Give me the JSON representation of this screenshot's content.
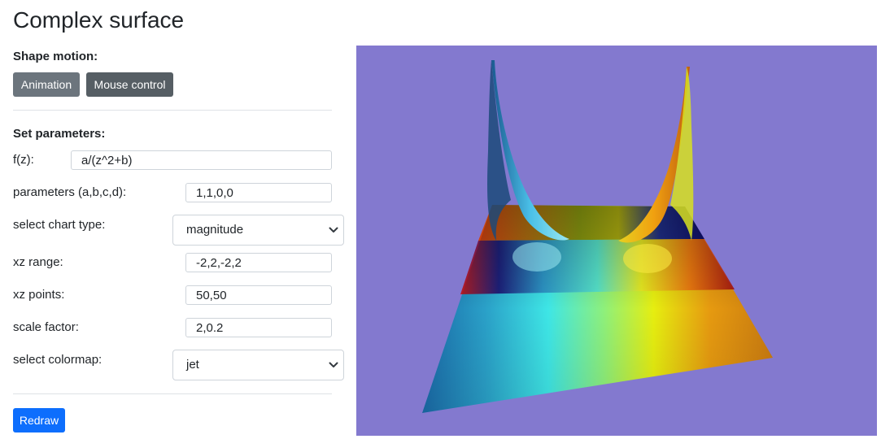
{
  "page": {
    "title": "Complex surface"
  },
  "motion": {
    "label": "Shape motion:",
    "animation_label": "Animation",
    "mouse_label": "Mouse control"
  },
  "params": {
    "label": "Set parameters:",
    "fz_label": "f(z):",
    "fz_value": "a/(z^2+b)",
    "abcd_label": "parameters (a,b,c,d):",
    "abcd_value": "1,1,0,0",
    "chart_type_label": "select chart type:",
    "chart_type_value": "magnitude",
    "xz_range_label": "xz range:",
    "xz_range_value": "-2,2,-2,2",
    "xz_points_label": "xz points:",
    "xz_points_value": "50,50",
    "scale_label": "scale factor:",
    "scale_value": "2,0.2",
    "colormap_label": "select colormap:",
    "colormap_value": "jet"
  },
  "actions": {
    "redraw_label": "Redraw"
  },
  "colors": {
    "canvas_bg": "#8379cf",
    "primary": "#0d6efd",
    "secondary": "#6c757d",
    "secondary_dark": "#565e64"
  },
  "icons": {
    "select_chevron": "chevron-down-icon"
  }
}
